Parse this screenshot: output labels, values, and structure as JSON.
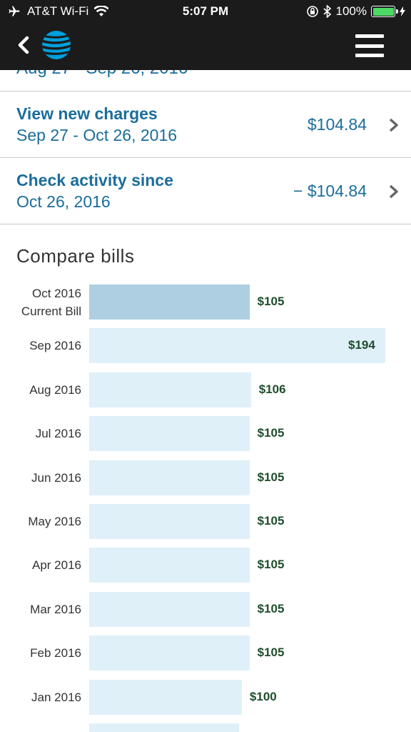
{
  "status_bar": {
    "carrier": "AT&T Wi-Fi",
    "time": "5:07 PM",
    "battery": "100%",
    "battery_level": 1.0
  },
  "header": {
    "back_icon": "chevron-left-icon",
    "logo_icon": "att-globe-icon",
    "menu_icon": "hamburger-menu-icon"
  },
  "cutoff_row": {
    "text": "Aug 27 - Sep 26, 2016"
  },
  "rows": [
    {
      "title": "View new charges",
      "subtitle": "Sep 27 - Oct 26, 2016",
      "amount": "$104.84"
    },
    {
      "title": "Check activity since",
      "subtitle": "Oct 26, 2016",
      "amount": "− $104.84"
    }
  ],
  "compare": {
    "title": "Compare bills"
  },
  "chart_data": {
    "type": "bar",
    "orientation": "horizontal",
    "title": "Compare bills",
    "categories": [
      [
        "Oct 2016",
        "Current Bill"
      ],
      [
        "Sep 2016"
      ],
      [
        "Aug 2016"
      ],
      [
        "Jul 2016"
      ],
      [
        "Jun 2016"
      ],
      [
        "May 2016"
      ],
      [
        "Apr 2016"
      ],
      [
        "Mar 2016"
      ],
      [
        "Feb 2016"
      ],
      [
        "Jan 2016"
      ]
    ],
    "values": [
      105,
      194,
      106,
      105,
      105,
      105,
      105,
      105,
      105,
      100
    ],
    "value_labels": [
      "$105",
      "$194",
      "$106",
      "$105",
      "$105",
      "$105",
      "$105",
      "$105",
      "$105",
      "$100"
    ],
    "highlight_index": 0,
    "colors": {
      "current": "#aecfe1",
      "other": "#dff0f9",
      "value_text": "#1f4d2c"
    }
  },
  "colors": {
    "link": "#1b6d9c",
    "header_bg": "#1b1b1b",
    "logo": "#009fdb"
  }
}
